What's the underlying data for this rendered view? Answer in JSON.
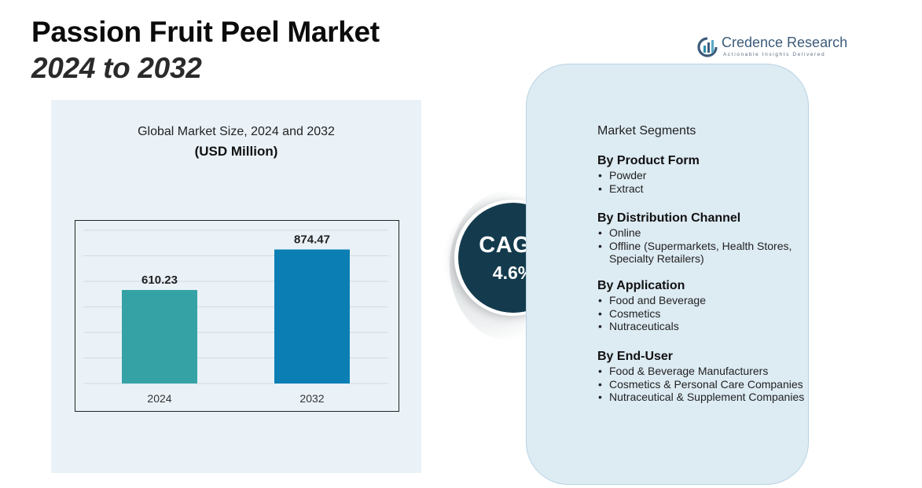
{
  "header": {
    "title": "Passion Fruit Peel Market",
    "subtitle": "2024 to 2032"
  },
  "brand": {
    "name": "Credence Research",
    "tagline": "Actionable Insights Delivered",
    "icon": "credence-logo-icon"
  },
  "chart_data": {
    "type": "bar",
    "title": "Global Market Size, 2024 and 2032",
    "unit_label": "(USD Million)",
    "categories": [
      "2024",
      "2032"
    ],
    "values": [
      610.23,
      874.47
    ],
    "value_labels": [
      "610.23",
      "874.47"
    ],
    "ylim": [
      0,
      1000
    ],
    "grid": true,
    "bar_colors": [
      "#35a3a5",
      "#0b7fb4"
    ]
  },
  "cagr": {
    "label": "CAGR",
    "value": "4.6%"
  },
  "segments": {
    "heading": "Market Segments",
    "groups": [
      {
        "title": "By Product Form",
        "items": [
          "Powder",
          "Extract"
        ]
      },
      {
        "title": "By Distribution Channel",
        "items": [
          "Online",
          "Offline (Supermarkets, Health Stores, Specialty Retailers)"
        ]
      },
      {
        "title": "By Application",
        "items": [
          "Food and Beverage",
          "Cosmetics",
          "Nutraceuticals"
        ]
      },
      {
        "title": "By End-User",
        "items": [
          "Food & Beverage Manufacturers",
          "Cosmetics & Personal Care Companies",
          "Nutraceutical & Supplement Companies"
        ]
      }
    ]
  },
  "colors": {
    "panel_bg": "#eaf2f8",
    "segment_card_bg": "#ddebf3",
    "cagr_circle": "#143b4d"
  }
}
